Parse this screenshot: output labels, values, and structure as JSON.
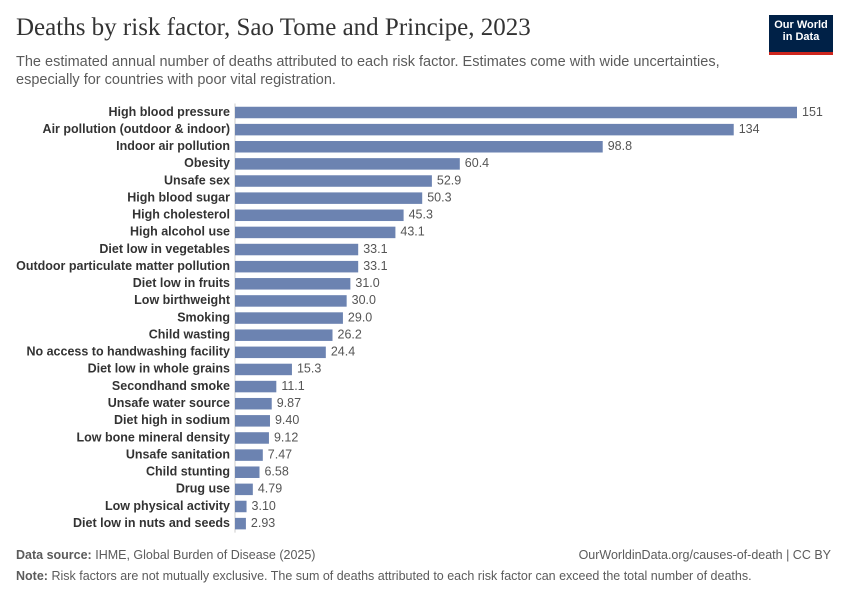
{
  "chart_data": {
    "type": "bar",
    "orientation": "horizontal",
    "title": "Deaths by risk factor, Sao Tome and Principe, 2023",
    "subtitle": "The estimated annual number of deaths attributed to each risk factor. Estimates come with wide uncertainties, especially for countries with poor vital registration.",
    "categories": [
      "High blood pressure",
      "Air pollution (outdoor & indoor)",
      "Indoor air pollution",
      "Obesity",
      "Unsafe sex",
      "High blood sugar",
      "High cholesterol",
      "High alcohol use",
      "Diet low in vegetables",
      "Outdoor particulate matter pollution",
      "Diet low in fruits",
      "Low birthweight",
      "Smoking",
      "Child wasting",
      "No access to handwashing facility",
      "Diet low in whole grains",
      "Secondhand smoke",
      "Unsafe water source",
      "Diet high in sodium",
      "Low bone mineral density",
      "Unsafe sanitation",
      "Child stunting",
      "Drug use",
      "Low physical activity",
      "Diet low in nuts and seeds"
    ],
    "values": [
      151,
      134,
      98.8,
      60.4,
      52.9,
      50.3,
      45.3,
      43.1,
      33.1,
      33.1,
      31,
      30,
      29,
      26.2,
      24.4,
      15.3,
      11.1,
      9.87,
      9.4,
      9.12,
      7.47,
      6.58,
      4.79,
      3.1,
      2.93
    ],
    "value_labels": [
      "151",
      "134",
      "98.8",
      "60.4",
      "52.9",
      "50.3",
      "45.3",
      "43.1",
      "33.1",
      "33.1",
      "31.0",
      "30.0",
      "29.0",
      "26.2",
      "24.4",
      "15.3",
      "11.1",
      "9.87",
      "9.40",
      "9.12",
      "7.47",
      "6.58",
      "4.79",
      "3.10",
      "2.93"
    ],
    "color": "#6c83b1",
    "source_label": "Data source:",
    "source": "IHME, Global Burden of Disease (2025)",
    "url": "OurWorldinData.org/causes-of-death | CC BY",
    "note_label": "Note:",
    "note": "Risk factors are not mutually exclusive. The sum of deaths attributed to each risk factor can exceed the total number of deaths."
  },
  "logo": [
    "Our World",
    "in Data"
  ]
}
